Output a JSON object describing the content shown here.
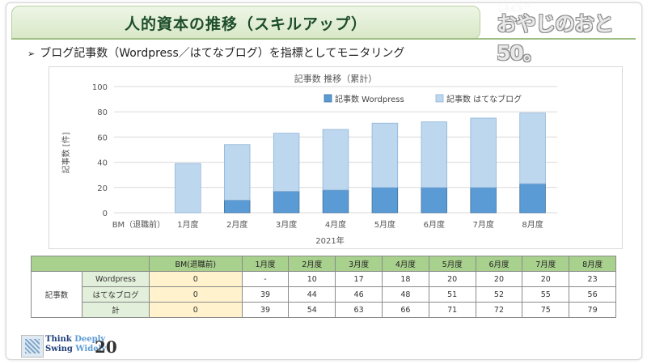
{
  "header": {
    "title": "人的資本の推移（スキルアップ）",
    "logo_text": "おやじのおと50。"
  },
  "subtitle": {
    "bullet": "➢",
    "text": "ブログ記事数（Wordpress／はてなブログ）を指標としてモニタリング"
  },
  "chart_data": {
    "type": "bar",
    "stacked": true,
    "title": "記事数 推移（累計）",
    "xlabel": "2021年",
    "ylabel": "記事数 [件]",
    "ylim": [
      0,
      100
    ],
    "yticks": [
      0,
      20,
      40,
      60,
      80,
      100
    ],
    "categories": [
      "BM（退職前）",
      "1月度",
      "2月度",
      "3月度",
      "4月度",
      "5月度",
      "6月度",
      "7月度",
      "8月度"
    ],
    "series": [
      {
        "name": "記事数 Wordpress",
        "color": "#5b9bd5",
        "values": [
          0,
          0,
          10,
          17,
          18,
          20,
          20,
          20,
          23
        ]
      },
      {
        "name": "記事数 はてなブログ",
        "color": "#bdd7ee",
        "values": [
          0,
          39,
          44,
          46,
          48,
          51,
          52,
          55,
          56
        ]
      }
    ],
    "legend_position": "top-right",
    "grid": true
  },
  "table": {
    "headers": [
      "BM(退職前)",
      "1月度",
      "2月度",
      "3月度",
      "4月度",
      "5月度",
      "6月度",
      "7月度",
      "8月度"
    ],
    "group_label": "記事数",
    "rows": [
      {
        "label": "Wordpress",
        "cells": [
          "0",
          "-",
          "10",
          "17",
          "18",
          "20",
          "20",
          "20",
          "23"
        ]
      },
      {
        "label": "はてなブログ",
        "cells": [
          "0",
          "39",
          "44",
          "46",
          "48",
          "51",
          "52",
          "55",
          "56"
        ]
      },
      {
        "label": "計",
        "cells": [
          "0",
          "39",
          "54",
          "63",
          "66",
          "71",
          "72",
          "75",
          "79"
        ]
      }
    ]
  },
  "footer": {
    "line1a": "Think ",
    "line1b": "Deeply",
    "line2a": "Swing ",
    "line2b": "Widely",
    "number": "20"
  }
}
